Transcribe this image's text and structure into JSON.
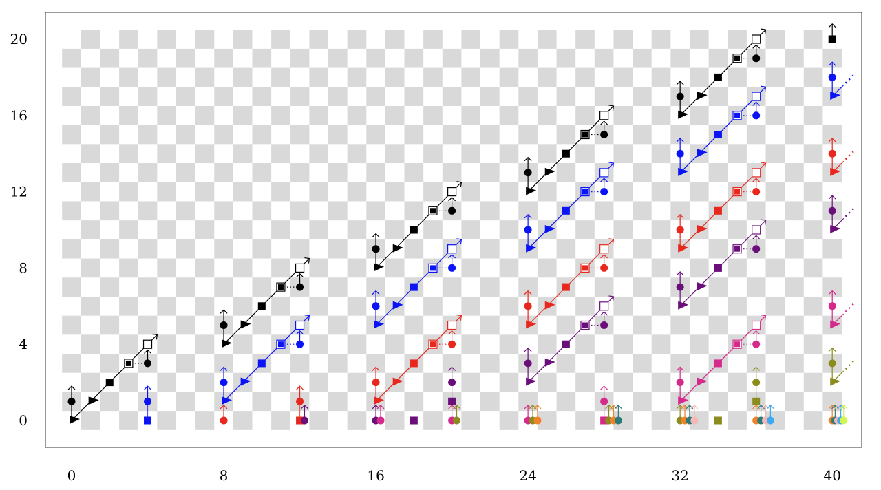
{
  "colors": {
    "black": "#000000",
    "blue": "#0a14f5",
    "red": "#e8281e",
    "purple": "#6a0f7a",
    "pink": "#d42a8a",
    "olive": "#8c8c1e",
    "orange": "#f0822a",
    "teal": "#2a7a78",
    "lightpink": "#f4b8b8",
    "lightblue": "#3ea8f0",
    "lime": "#d2f550",
    "checker": "#d9d9d9"
  },
  "axes": {
    "x_ticks": [
      "0",
      "8",
      "16",
      "24",
      "32",
      "40"
    ],
    "x_tick_values": [
      0,
      8,
      16,
      24,
      32,
      40
    ],
    "y_ticks": [
      "0",
      "4",
      "8",
      "12",
      "16",
      "20"
    ],
    "y_tick_values": [
      0,
      4,
      8,
      12,
      16,
      20
    ],
    "xlim": [
      -2.4,
      40.6
    ],
    "ylim": [
      -1.4,
      21.4
    ],
    "checkerboard": {
      "cols": [
        0,
        40
      ],
      "rows": [
        0,
        20
      ]
    }
  },
  "staircases": [
    {
      "color": "black",
      "x": 0,
      "y": 0
    },
    {
      "color": "black",
      "x": 8,
      "y": 4
    },
    {
      "color": "black",
      "x": 16,
      "y": 8
    },
    {
      "color": "black",
      "x": 24,
      "y": 12
    },
    {
      "color": "black",
      "x": 32,
      "y": 16
    },
    {
      "color": "blue",
      "x": 8,
      "y": 1
    },
    {
      "color": "blue",
      "x": 16,
      "y": 5
    },
    {
      "color": "blue",
      "x": 24,
      "y": 9
    },
    {
      "color": "blue",
      "x": 32,
      "y": 13
    },
    {
      "color": "red",
      "x": 16,
      "y": 1
    },
    {
      "color": "red",
      "x": 24,
      "y": 5
    },
    {
      "color": "red",
      "x": 32,
      "y": 9
    },
    {
      "color": "purple",
      "x": 24,
      "y": 2
    },
    {
      "color": "purple",
      "x": 32,
      "y": 6
    },
    {
      "color": "pink",
      "x": 32,
      "y": 1
    }
  ],
  "columns": [
    {
      "color": "blue",
      "x": 40,
      "y": 17
    },
    {
      "color": "red",
      "x": 40,
      "y": 13
    },
    {
      "color": "purple",
      "x": 40,
      "y": 10
    },
    {
      "color": "pink",
      "x": 40,
      "y": 5
    },
    {
      "color": "olive",
      "x": 40,
      "y": 2
    }
  ],
  "squares": [
    {
      "color": "black",
      "x": 40,
      "y": 20,
      "arrow": true
    },
    {
      "color": "blue",
      "x": 4,
      "y": 0
    },
    {
      "color": "red",
      "x": 12,
      "y": 0
    },
    {
      "color": "purple",
      "x": 18,
      "y": 0
    },
    {
      "color": "purple",
      "x": 20,
      "y": 1
    },
    {
      "color": "pink",
      "x": 28,
      "y": 0
    },
    {
      "color": "olive",
      "x": 34,
      "y": 0
    },
    {
      "color": "olive",
      "x": 36,
      "y": 1
    }
  ],
  "circles": [
    {
      "color": "blue",
      "x": 4,
      "y": 1
    },
    {
      "color": "red",
      "x": 8,
      "y": 0
    },
    {
      "color": "red",
      "x": 12,
      "y": 1
    },
    {
      "color": "purple",
      "x": 12.25,
      "y": 0
    },
    {
      "color": "purple",
      "x": 16,
      "y": 0
    },
    {
      "color": "pink",
      "x": 16.25,
      "y": 0
    },
    {
      "color": "purple",
      "x": 20,
      "y": 2
    },
    {
      "color": "pink",
      "x": 20,
      "y": 0
    },
    {
      "color": "olive",
      "x": 20.25,
      "y": 0
    },
    {
      "color": "pink",
      "x": 24,
      "y": 0
    },
    {
      "color": "olive",
      "x": 24.25,
      "y": 0
    },
    {
      "color": "orange",
      "x": 24.5,
      "y": 0
    },
    {
      "color": "pink",
      "x": 28,
      "y": 1
    },
    {
      "color": "olive",
      "x": 28.25,
      "y": 0
    },
    {
      "color": "orange",
      "x": 28.5,
      "y": 0
    },
    {
      "color": "teal",
      "x": 28.75,
      "y": 0
    },
    {
      "color": "olive",
      "x": 32,
      "y": 0
    },
    {
      "color": "orange",
      "x": 32.25,
      "y": 0
    },
    {
      "color": "teal",
      "x": 32.5,
      "y": 0
    },
    {
      "color": "lightpink",
      "x": 32.75,
      "y": 0
    },
    {
      "color": "olive",
      "x": 36,
      "y": 2
    },
    {
      "color": "orange",
      "x": 36,
      "y": 0
    },
    {
      "color": "teal",
      "x": 36.25,
      "y": 0
    },
    {
      "color": "lightpink",
      "x": 36.5,
      "y": 0
    },
    {
      "color": "lightblue",
      "x": 36.75,
      "y": 0
    },
    {
      "color": "orange",
      "x": 40,
      "y": 0
    },
    {
      "color": "teal",
      "x": 40.15,
      "y": 0
    },
    {
      "color": "lightpink",
      "x": 40.3,
      "y": 0
    },
    {
      "color": "lightblue",
      "x": 40.45,
      "y": 0
    },
    {
      "color": "lime",
      "x": 40.6,
      "y": 0
    }
  ],
  "links": [
    {
      "color": "blue",
      "from": [
        4,
        0
      ],
      "to": [
        4,
        1
      ]
    },
    {
      "color": "red",
      "from": [
        12,
        0
      ],
      "to": [
        12,
        1
      ]
    },
    {
      "color": "purple",
      "from": [
        20,
        1
      ],
      "to": [
        20,
        2
      ]
    },
    {
      "color": "pink",
      "from": [
        28,
        0
      ],
      "to": [
        28,
        1
      ]
    },
    {
      "color": "olive",
      "from": [
        36,
        1
      ],
      "to": [
        36,
        2
      ]
    }
  ]
}
